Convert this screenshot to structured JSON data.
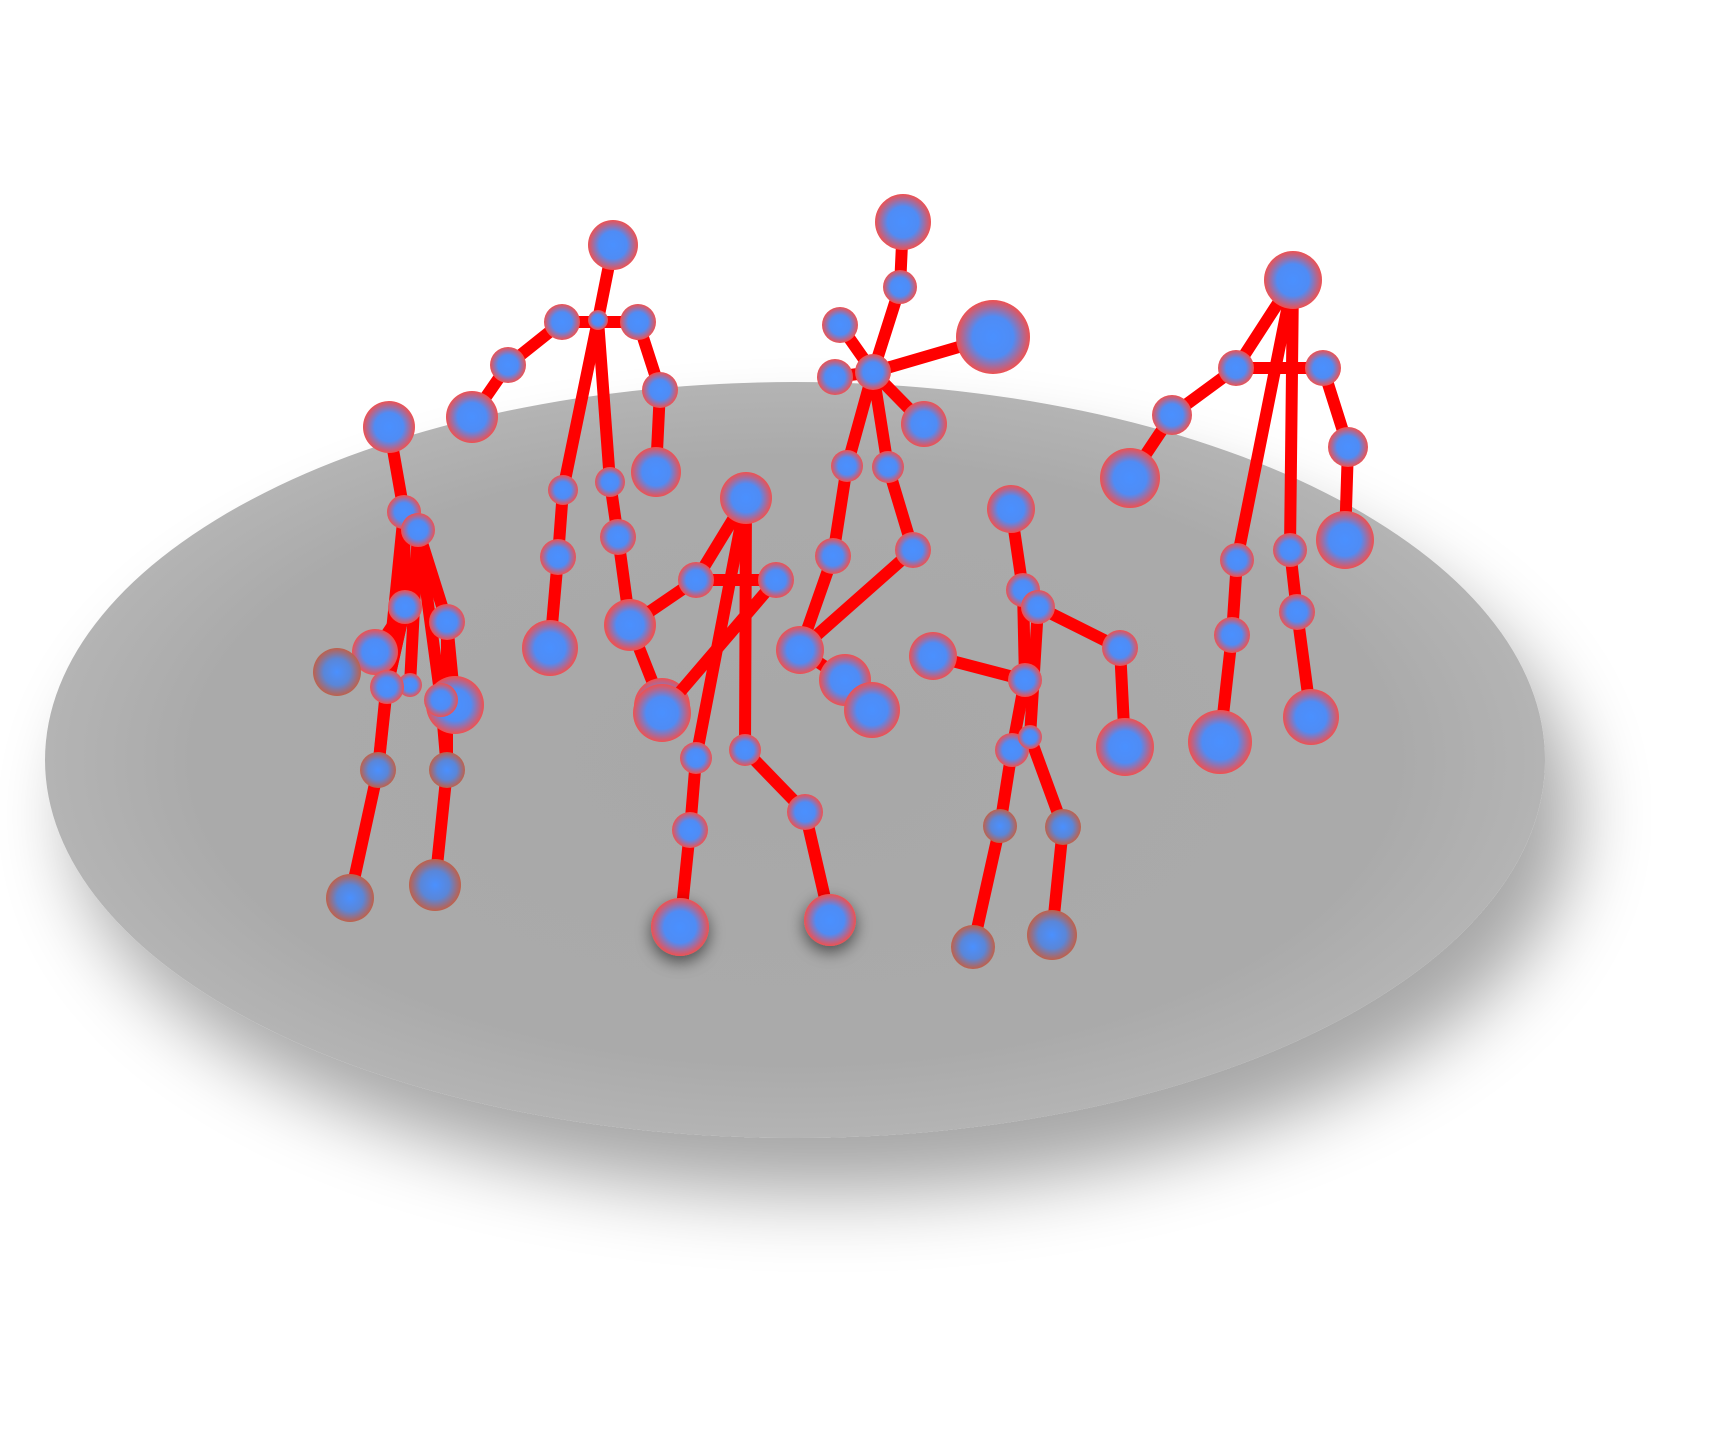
{
  "scene": {
    "floor_color": "#aaaaaa",
    "floor_rim_color": "#c4c4c4",
    "bone_color": "#ff0000",
    "joint_center_color": "#4a90ff",
    "joint_rim_color": "#f25050",
    "figure_count": 6
  }
}
